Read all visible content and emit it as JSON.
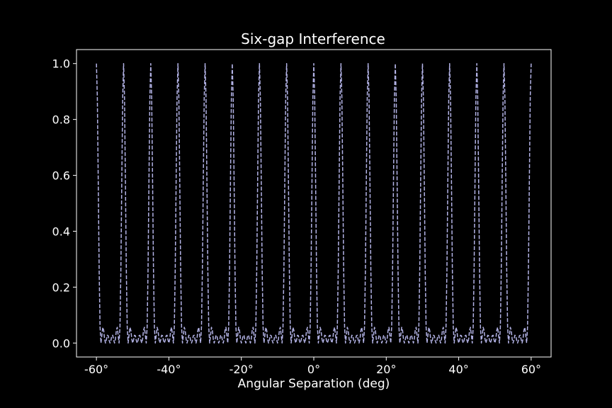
{
  "chart_data": {
    "type": "line",
    "title": "Six-gap Interference",
    "xlabel": "Angular Separation (deg)",
    "ylabel": "",
    "xlim": [
      -65.5,
      65.5
    ],
    "ylim": [
      -0.05,
      1.05
    ],
    "grid": false,
    "legend": "none",
    "x_ticks": [
      -60,
      -40,
      -20,
      0,
      20,
      40,
      60
    ],
    "x_tick_labels": [
      "-60°",
      "-40°",
      "-20°",
      "0°",
      "20°",
      "40°",
      "60°"
    ],
    "y_ticks": [
      0.0,
      0.2,
      0.4,
      0.6,
      0.8,
      1.0
    ],
    "y_tick_labels": [
      "0.0",
      "0.2",
      "0.4",
      "0.6",
      "0.8",
      "1.0"
    ],
    "series": [
      {
        "function": "six-gap interference intensity, normalized: (sin(N*phi/2)/(N*sin(phi/2)))^2 with N = 6",
        "gaps": 6,
        "principal_maxima_deg": [
          -60,
          -52.5,
          -45,
          -37.5,
          -30,
          -22.5,
          -15,
          -7.5,
          0,
          7.5,
          15,
          22.5,
          30,
          37.5,
          45,
          52.5,
          60
        ],
        "peak_value": 1.0,
        "secondary_max_value": 0.05,
        "x_range": [
          -60,
          60
        ],
        "samples": 481,
        "color": "#b3b3e6",
        "line_style": "dashed"
      }
    ]
  }
}
